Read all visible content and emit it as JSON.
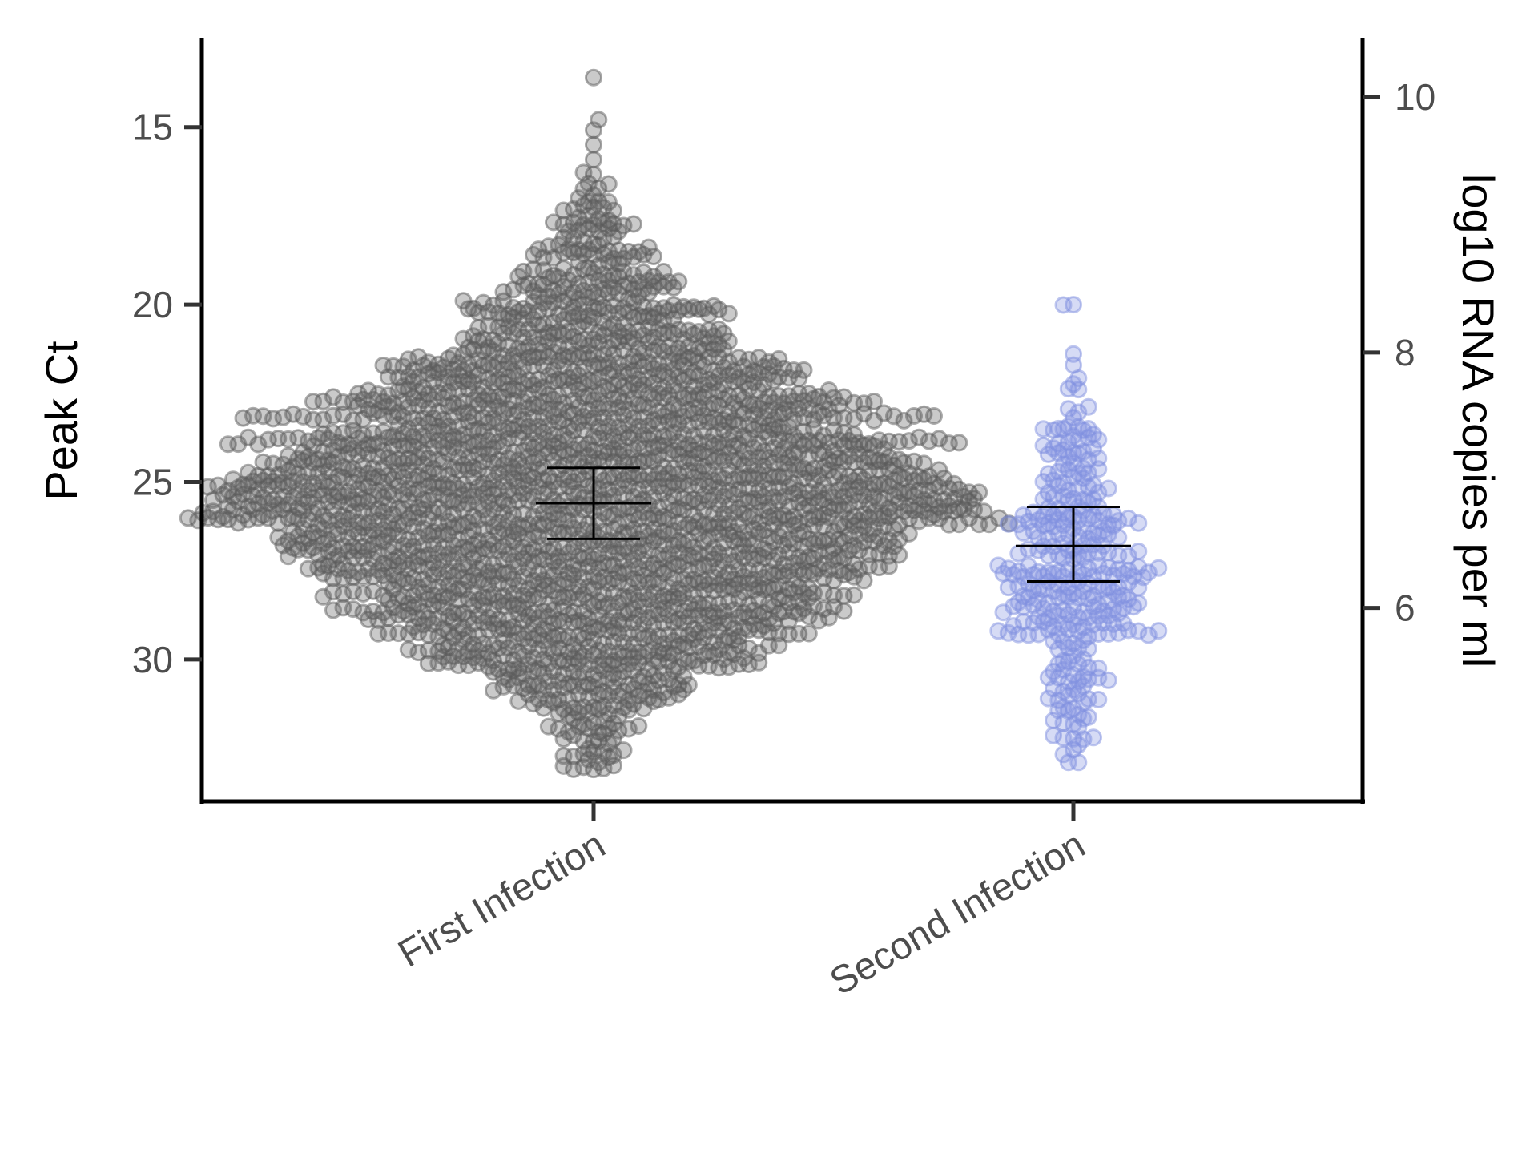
{
  "chart_data": {
    "type": "scatter",
    "subtype": "beeswarm with mean and confidence-interval error bars",
    "categories": [
      "First Infection",
      "Second Infection"
    ],
    "ylabel": "Peak Ct",
    "y_reversed": true,
    "ylim": [
      34,
      12.5
    ],
    "y_ticks": [
      15,
      20,
      25,
      30
    ],
    "y2label": "log10 RNA copies per ml",
    "y2_ticks": [
      10,
      8,
      6
    ],
    "y2_mapping": {
      "at_ct": [
        14.15,
        21.35,
        28.55
      ],
      "value": [
        10,
        8,
        6
      ]
    },
    "grid": false,
    "legend": "none",
    "series": [
      {
        "category": "First Infection",
        "color": "#5a5a5a",
        "n_points": 2600,
        "y_min": 33.1,
        "y_max": 13.6,
        "mode_ct": 25.4,
        "mean": 25.6,
        "ci": [
          24.6,
          26.6
        ]
      },
      {
        "category": "Second Infection",
        "color": "#7f8fe0",
        "n_points": 320,
        "y_min": 32.9,
        "y_max": 20.0,
        "mode_ct": 27.5,
        "mean": 26.8,
        "ci": [
          25.7,
          27.8
        ]
      }
    ],
    "colors": {
      "axis": "#000000",
      "tick_text": "#4d4d4d",
      "error_bar": "#000000"
    }
  }
}
